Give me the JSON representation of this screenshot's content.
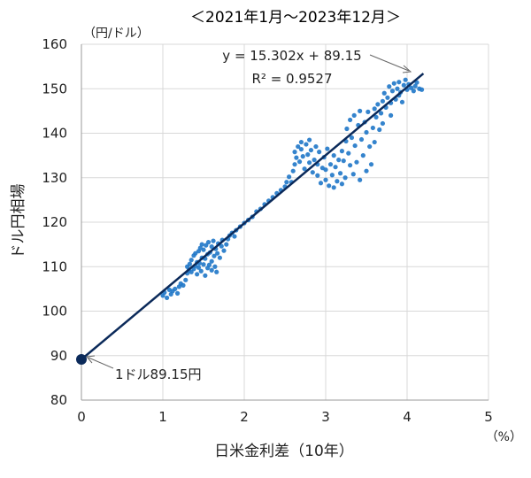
{
  "chart_data": {
    "type": "scatter",
    "title": "＜2021年1月～2023年12月＞",
    "xlabel": "日米金利差（10年）",
    "ylabel": "ドル円相場",
    "x_unit": "（%）",
    "y_unit": "（円/ドル）",
    "xlim": [
      0,
      5
    ],
    "ylim": [
      80,
      160
    ],
    "x_ticks": [
      "0",
      "1",
      "2",
      "3",
      "4",
      "5"
    ],
    "y_ticks": [
      "80",
      "90",
      "100",
      "110",
      "120",
      "130",
      "140",
      "150",
      "160"
    ],
    "grid": true,
    "point_color": "#1f77c8",
    "trendline_color": "#0b2a5a",
    "trendline": {
      "slope": 15.302,
      "intercept": 89.15,
      "x_range": [
        0,
        4.2
      ]
    },
    "equation_label": "y = 15.302x + 89.15",
    "r2_label": "R² = 0.9527",
    "intercept_point": {
      "x": 0,
      "y": 89.15,
      "label": "1ドル89.15円"
    },
    "points": [
      {
        "x": 1.0,
        "y": 103.5
      },
      {
        "x": 1.02,
        "y": 104.2
      },
      {
        "x": 1.05,
        "y": 103.0
      },
      {
        "x": 1.08,
        "y": 104.8
      },
      {
        "x": 1.1,
        "y": 103.8
      },
      {
        "x": 1.12,
        "y": 104.5
      },
      {
        "x": 1.15,
        "y": 105.0
      },
      {
        "x": 1.18,
        "y": 104.0
      },
      {
        "x": 1.2,
        "y": 105.5
      },
      {
        "x": 1.22,
        "y": 106.2
      },
      {
        "x": 1.25,
        "y": 105.8
      },
      {
        "x": 1.28,
        "y": 107.0
      },
      {
        "x": 1.3,
        "y": 108.5
      },
      {
        "x": 1.3,
        "y": 110.0
      },
      {
        "x": 1.32,
        "y": 109.2
      },
      {
        "x": 1.33,
        "y": 110.6
      },
      {
        "x": 1.35,
        "y": 108.8
      },
      {
        "x": 1.35,
        "y": 111.5
      },
      {
        "x": 1.38,
        "y": 109.5
      },
      {
        "x": 1.38,
        "y": 112.5
      },
      {
        "x": 1.4,
        "y": 110.2
      },
      {
        "x": 1.4,
        "y": 113.0
      },
      {
        "x": 1.42,
        "y": 108.3
      },
      {
        "x": 1.42,
        "y": 111.0
      },
      {
        "x": 1.44,
        "y": 109.8
      },
      {
        "x": 1.44,
        "y": 113.5
      },
      {
        "x": 1.45,
        "y": 110.8
      },
      {
        "x": 1.46,
        "y": 114.2
      },
      {
        "x": 1.47,
        "y": 109.0
      },
      {
        "x": 1.48,
        "y": 112.0
      },
      {
        "x": 1.48,
        "y": 115.0
      },
      {
        "x": 1.5,
        "y": 110.5
      },
      {
        "x": 1.5,
        "y": 113.8
      },
      {
        "x": 1.52,
        "y": 108.0
      },
      {
        "x": 1.52,
        "y": 111.8
      },
      {
        "x": 1.53,
        "y": 114.8
      },
      {
        "x": 1.55,
        "y": 109.7
      },
      {
        "x": 1.55,
        "y": 112.8
      },
      {
        "x": 1.56,
        "y": 115.5
      },
      {
        "x": 1.57,
        "y": 110.4
      },
      {
        "x": 1.58,
        "y": 113.2
      },
      {
        "x": 1.6,
        "y": 109.2
      },
      {
        "x": 1.6,
        "y": 111.2
      },
      {
        "x": 1.6,
        "y": 114.5
      },
      {
        "x": 1.62,
        "y": 115.8
      },
      {
        "x": 1.63,
        "y": 112.4
      },
      {
        "x": 1.64,
        "y": 110.0
      },
      {
        "x": 1.65,
        "y": 114.0
      },
      {
        "x": 1.66,
        "y": 108.8
      },
      {
        "x": 1.67,
        "y": 113.0
      },
      {
        "x": 1.68,
        "y": 115.2
      },
      {
        "x": 1.7,
        "y": 112.0
      },
      {
        "x": 1.72,
        "y": 114.6
      },
      {
        "x": 1.73,
        "y": 116.0
      },
      {
        "x": 1.75,
        "y": 113.6
      },
      {
        "x": 1.78,
        "y": 115.0
      },
      {
        "x": 1.8,
        "y": 116.2
      },
      {
        "x": 1.82,
        "y": 117.0
      },
      {
        "x": 1.85,
        "y": 117.6
      },
      {
        "x": 1.88,
        "y": 116.8
      },
      {
        "x": 1.9,
        "y": 118.2
      },
      {
        "x": 1.95,
        "y": 119.0
      },
      {
        "x": 2.0,
        "y": 119.8
      },
      {
        "x": 2.05,
        "y": 120.5
      },
      {
        "x": 2.1,
        "y": 121.2
      },
      {
        "x": 2.15,
        "y": 122.4
      },
      {
        "x": 2.2,
        "y": 123.0
      },
      {
        "x": 2.25,
        "y": 124.0
      },
      {
        "x": 2.3,
        "y": 124.8
      },
      {
        "x": 2.35,
        "y": 125.6
      },
      {
        "x": 2.4,
        "y": 126.5
      },
      {
        "x": 2.45,
        "y": 127.2
      },
      {
        "x": 2.5,
        "y": 128.0
      },
      {
        "x": 2.52,
        "y": 129.0
      },
      {
        "x": 2.55,
        "y": 130.2
      },
      {
        "x": 2.58,
        "y": 129.0
      },
      {
        "x": 2.6,
        "y": 131.5
      },
      {
        "x": 2.62,
        "y": 133.0
      },
      {
        "x": 2.62,
        "y": 135.8
      },
      {
        "x": 2.64,
        "y": 134.5
      },
      {
        "x": 2.66,
        "y": 137.0
      },
      {
        "x": 2.68,
        "y": 133.6
      },
      {
        "x": 2.7,
        "y": 136.4
      },
      {
        "x": 2.7,
        "y": 138.0
      },
      {
        "x": 2.72,
        "y": 134.8
      },
      {
        "x": 2.74,
        "y": 132.0
      },
      {
        "x": 2.76,
        "y": 137.5
      },
      {
        "x": 2.78,
        "y": 135.2
      },
      {
        "x": 2.8,
        "y": 133.4
      },
      {
        "x": 2.8,
        "y": 138.5
      },
      {
        "x": 2.82,
        "y": 136.2
      },
      {
        "x": 2.84,
        "y": 131.2
      },
      {
        "x": 2.86,
        "y": 134.0
      },
      {
        "x": 2.88,
        "y": 137.0
      },
      {
        "x": 2.9,
        "y": 130.5
      },
      {
        "x": 2.9,
        "y": 133.0
      },
      {
        "x": 2.92,
        "y": 135.8
      },
      {
        "x": 2.94,
        "y": 128.8
      },
      {
        "x": 2.96,
        "y": 132.2
      },
      {
        "x": 2.98,
        "y": 134.6
      },
      {
        "x": 3.0,
        "y": 129.5
      },
      {
        "x": 3.0,
        "y": 131.8
      },
      {
        "x": 3.02,
        "y": 136.5
      },
      {
        "x": 3.04,
        "y": 128.2
      },
      {
        "x": 3.06,
        "y": 133.0
      },
      {
        "x": 3.08,
        "y": 130.6
      },
      {
        "x": 3.1,
        "y": 127.8
      },
      {
        "x": 3.1,
        "y": 135.0
      },
      {
        "x": 3.12,
        "y": 132.4
      },
      {
        "x": 3.14,
        "y": 129.2
      },
      {
        "x": 3.16,
        "y": 134.0
      },
      {
        "x": 3.18,
        "y": 131.0
      },
      {
        "x": 3.2,
        "y": 128.6
      },
      {
        "x": 3.2,
        "y": 136.0
      },
      {
        "x": 3.22,
        "y": 133.8
      },
      {
        "x": 3.24,
        "y": 130.0
      },
      {
        "x": 3.25,
        "y": 138.2
      },
      {
        "x": 3.26,
        "y": 141.0
      },
      {
        "x": 3.28,
        "y": 135.5
      },
      {
        "x": 3.3,
        "y": 132.8
      },
      {
        "x": 3.3,
        "y": 143.0
      },
      {
        "x": 3.32,
        "y": 139.0
      },
      {
        "x": 3.34,
        "y": 130.8
      },
      {
        "x": 3.35,
        "y": 144.0
      },
      {
        "x": 3.36,
        "y": 137.2
      },
      {
        "x": 3.38,
        "y": 133.5
      },
      {
        "x": 3.4,
        "y": 141.8
      },
      {
        "x": 3.42,
        "y": 129.5
      },
      {
        "x": 3.42,
        "y": 145.0
      },
      {
        "x": 3.44,
        "y": 138.6
      },
      {
        "x": 3.46,
        "y": 135.0
      },
      {
        "x": 3.48,
        "y": 142.5
      },
      {
        "x": 3.5,
        "y": 131.5
      },
      {
        "x": 3.5,
        "y": 140.2
      },
      {
        "x": 3.52,
        "y": 144.8
      },
      {
        "x": 3.54,
        "y": 137.0
      },
      {
        "x": 3.56,
        "y": 133.0
      },
      {
        "x": 3.58,
        "y": 141.2
      },
      {
        "x": 3.6,
        "y": 145.5
      },
      {
        "x": 3.6,
        "y": 138.0
      },
      {
        "x": 3.62,
        "y": 143.6
      },
      {
        "x": 3.64,
        "y": 146.5
      },
      {
        "x": 3.66,
        "y": 140.8
      },
      {
        "x": 3.68,
        "y": 144.5
      },
      {
        "x": 3.7,
        "y": 147.2
      },
      {
        "x": 3.7,
        "y": 142.2
      },
      {
        "x": 3.72,
        "y": 149.0
      },
      {
        "x": 3.74,
        "y": 145.8
      },
      {
        "x": 3.76,
        "y": 148.0
      },
      {
        "x": 3.78,
        "y": 150.5
      },
      {
        "x": 3.8,
        "y": 146.8
      },
      {
        "x": 3.8,
        "y": 144.0
      },
      {
        "x": 3.82,
        "y": 149.5
      },
      {
        "x": 3.84,
        "y": 151.2
      },
      {
        "x": 3.86,
        "y": 147.6
      },
      {
        "x": 3.88,
        "y": 150.0
      },
      {
        "x": 3.9,
        "y": 148.5
      },
      {
        "x": 3.9,
        "y": 151.5
      },
      {
        "x": 3.92,
        "y": 149.2
      },
      {
        "x": 3.94,
        "y": 147.0
      },
      {
        "x": 3.96,
        "y": 150.8
      },
      {
        "x": 3.98,
        "y": 152.0
      },
      {
        "x": 4.0,
        "y": 149.8
      },
      {
        "x": 4.02,
        "y": 151.0
      },
      {
        "x": 4.05,
        "y": 150.2
      },
      {
        "x": 4.08,
        "y": 149.5
      },
      {
        "x": 4.1,
        "y": 150.6
      },
      {
        "x": 4.12,
        "y": 151.4
      },
      {
        "x": 4.15,
        "y": 150.0
      },
      {
        "x": 4.18,
        "y": 149.8
      }
    ]
  }
}
